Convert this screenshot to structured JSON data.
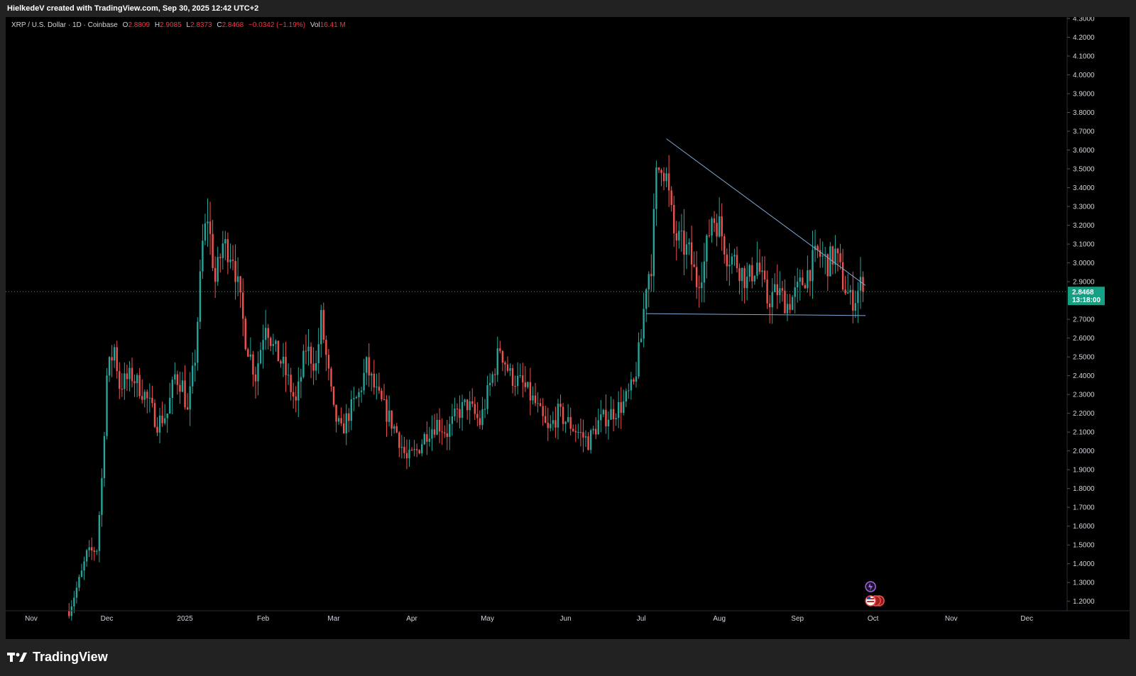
{
  "header": {
    "caption": "HielkedeV created with TradingView.com, Sep 30, 2025 12:42 UTC+2"
  },
  "legend": {
    "symbol": "XRP / U.S. Dollar · 1D · Coinbase",
    "open_label": "O",
    "open": "2.8809",
    "high_label": "H",
    "high": "2.9085",
    "low_label": "L",
    "low": "2.8373",
    "close_label": "C",
    "close": "2.8468",
    "change": "−0.0342 (−1.19%)",
    "vol_label": "Vol",
    "vol": "16.41 M"
  },
  "price_tag": {
    "price": "2.8468",
    "countdown": "13:18:00"
  },
  "brand": {
    "name": "TradingView"
  },
  "colors": {
    "up": "#26a69a",
    "down": "#ef5350",
    "trendline": "#7fa8d4",
    "tag": "#15a083",
    "background": "#000000",
    "frame": "#222222"
  },
  "chart_data": {
    "type": "candlestick",
    "title": "",
    "xlabel": "",
    "ylabel": "",
    "ylim": [
      1.15,
      4.3
    ],
    "last_price": 2.8468,
    "y_ticks": [
      "1.2000",
      "1.3000",
      "1.4000",
      "1.5000",
      "1.6000",
      "1.7000",
      "1.8000",
      "1.9000",
      "2.0000",
      "2.1000",
      "2.2000",
      "2.3000",
      "2.4000",
      "2.5000",
      "2.6000",
      "2.7000",
      "2.9000",
      "3.0000",
      "3.1000",
      "3.2000",
      "3.3000",
      "3.4000",
      "3.5000",
      "3.6000",
      "3.7000",
      "3.8000",
      "3.9000",
      "4.0000",
      "4.1000",
      "4.2000",
      "4.3000"
    ],
    "x_ticks": [
      {
        "label": "Nov",
        "day": 0
      },
      {
        "label": "Dec",
        "day": 30
      },
      {
        "label": "2025",
        "day": 61
      },
      {
        "label": "Feb",
        "day": 92
      },
      {
        "label": "Mar",
        "day": 120
      },
      {
        "label": "Apr",
        "day": 151
      },
      {
        "label": "May",
        "day": 181
      },
      {
        "label": "Jun",
        "day": 212
      },
      {
        "label": "Jul",
        "day": 242
      },
      {
        "label": "Aug",
        "day": 273
      },
      {
        "label": "Sep",
        "day": 304
      },
      {
        "label": "Oct",
        "day": 334
      },
      {
        "label": "Nov",
        "day": 365
      },
      {
        "label": "Dec",
        "day": 395
      }
    ],
    "start_day": 15,
    "anchors": [
      [
        15,
        1.15
      ],
      [
        20,
        1.35
      ],
      [
        22,
        1.45
      ],
      [
        26,
        1.48
      ],
      [
        28,
        1.85
      ],
      [
        30,
        2.4
      ],
      [
        33,
        2.55
      ],
      [
        35,
        2.35
      ],
      [
        40,
        2.4
      ],
      [
        45,
        2.3
      ],
      [
        50,
        2.15
      ],
      [
        54,
        2.2
      ],
      [
        57,
        2.4
      ],
      [
        60,
        2.35
      ],
      [
        62,
        2.2
      ],
      [
        65,
        2.5
      ],
      [
        68,
        3.1
      ],
      [
        70,
        3.25
      ],
      [
        73,
        2.9
      ],
      [
        76,
        3.1
      ],
      [
        80,
        3.05
      ],
      [
        85,
        2.6
      ],
      [
        89,
        2.4
      ],
      [
        93,
        2.7
      ],
      [
        96,
        2.55
      ],
      [
        100,
        2.45
      ],
      [
        105,
        2.25
      ],
      [
        109,
        2.55
      ],
      [
        113,
        2.45
      ],
      [
        115,
        2.7
      ],
      [
        117,
        2.5
      ],
      [
        120,
        2.2
      ],
      [
        123,
        2.1
      ],
      [
        126,
        2.2
      ],
      [
        130,
        2.3
      ],
      [
        133,
        2.45
      ],
      [
        137,
        2.3
      ],
      [
        141,
        2.2
      ],
      [
        145,
        2.1
      ],
      [
        149,
        1.95
      ],
      [
        153,
        2.0
      ],
      [
        157,
        2.1
      ],
      [
        161,
        2.15
      ],
      [
        165,
        2.1
      ],
      [
        169,
        2.2
      ],
      [
        173,
        2.25
      ],
      [
        178,
        2.15
      ],
      [
        182,
        2.35
      ],
      [
        186,
        2.55
      ],
      [
        190,
        2.4
      ],
      [
        195,
        2.35
      ],
      [
        200,
        2.25
      ],
      [
        205,
        2.1
      ],
      [
        209,
        2.2
      ],
      [
        213,
        2.15
      ],
      [
        217,
        2.1
      ],
      [
        221,
        2.05
      ],
      [
        225,
        2.15
      ],
      [
        230,
        2.2
      ],
      [
        235,
        2.25
      ],
      [
        239,
        2.35
      ],
      [
        242,
        2.6
      ],
      [
        244,
        2.9
      ],
      [
        246,
        3.0
      ],
      [
        248,
        3.45
      ],
      [
        250,
        3.55
      ],
      [
        252,
        3.45
      ],
      [
        255,
        3.15
      ],
      [
        258,
        3.1
      ],
      [
        261,
        3.05
      ],
      [
        264,
        2.9
      ],
      [
        267,
        3.0
      ],
      [
        270,
        3.25
      ],
      [
        273,
        3.2
      ],
      [
        276,
        3.05
      ],
      [
        280,
        3.0
      ],
      [
        284,
        2.9
      ],
      [
        288,
        3.0
      ],
      [
        292,
        2.8
      ],
      [
        296,
        2.85
      ],
      [
        300,
        2.78
      ],
      [
        304,
        2.85
      ],
      [
        308,
        2.95
      ],
      [
        312,
        3.05
      ],
      [
        316,
        3.0
      ],
      [
        319,
        3.05
      ],
      [
        322,
        2.9
      ],
      [
        325,
        2.8
      ],
      [
        327,
        2.82
      ],
      [
        329,
        2.88
      ],
      [
        330,
        2.8468
      ]
    ],
    "trendlines": [
      {
        "name": "upper",
        "from": [
          252,
          3.66
        ],
        "to": [
          331,
          2.88
        ]
      },
      {
        "name": "lower",
        "from": [
          244,
          2.73
        ],
        "to": [
          331,
          2.72
        ]
      }
    ]
  }
}
